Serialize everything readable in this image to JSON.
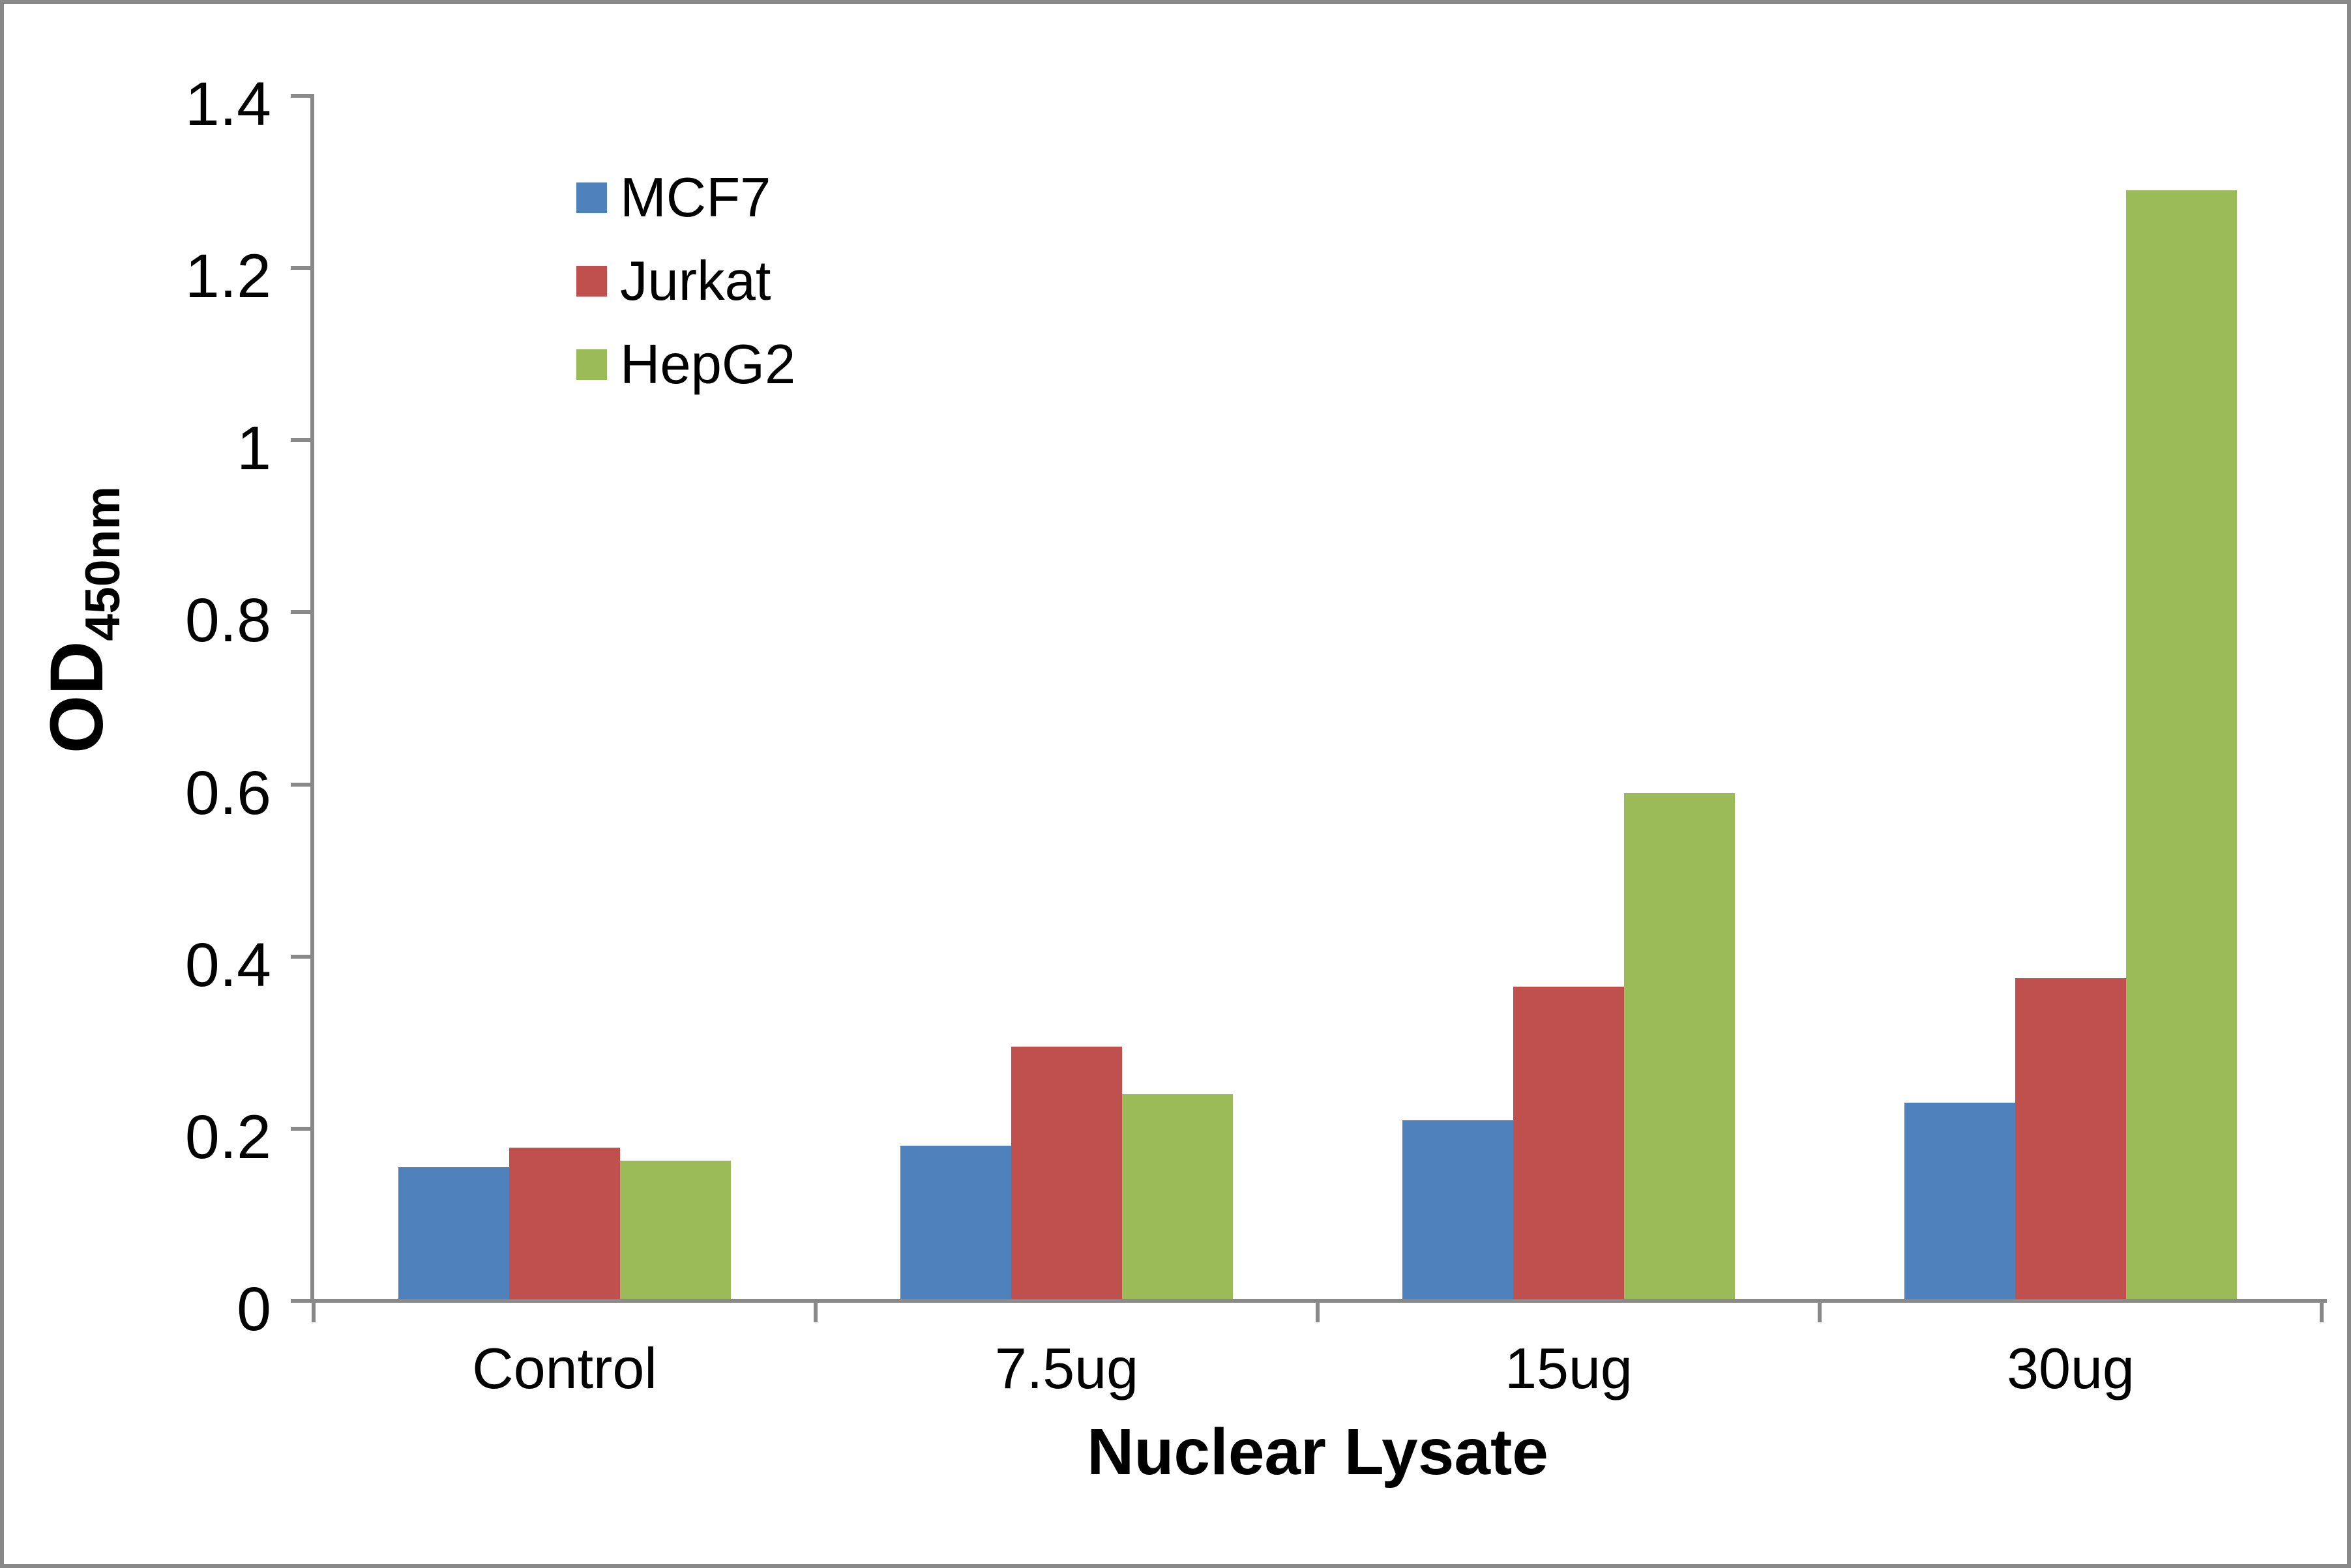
{
  "chart_data": {
    "type": "bar",
    "title": "",
    "categories": [
      "Control",
      "7.5ug",
      "15ug",
      "30ug"
    ],
    "series": [
      {
        "name": "MCF7",
        "color": "#4F81BD",
        "values": [
          0.155,
          0.18,
          0.21,
          0.23
        ]
      },
      {
        "name": "Jurkat",
        "color": "#C0504D",
        "values": [
          0.178,
          0.295,
          0.365,
          0.375
        ]
      },
      {
        "name": "HepG2",
        "color": "#9BBB59",
        "values": [
          0.163,
          0.24,
          0.59,
          1.29
        ]
      }
    ],
    "xlabel": "Nuclear Lysate",
    "ylabel_main": "OD",
    "ylabel_sub": "450nm",
    "ylim": [
      0,
      1.4
    ],
    "ytick_step": 0.2,
    "ytick_labels": [
      "0",
      "0.2",
      "0.4",
      "0.6",
      "0.8",
      "1",
      "1.2",
      "1.4"
    ],
    "grid": false,
    "legend_position": "upper-left-inside",
    "axis_color": "#898989",
    "background_color": "#FFFFFF",
    "border_color": "#898989"
  }
}
